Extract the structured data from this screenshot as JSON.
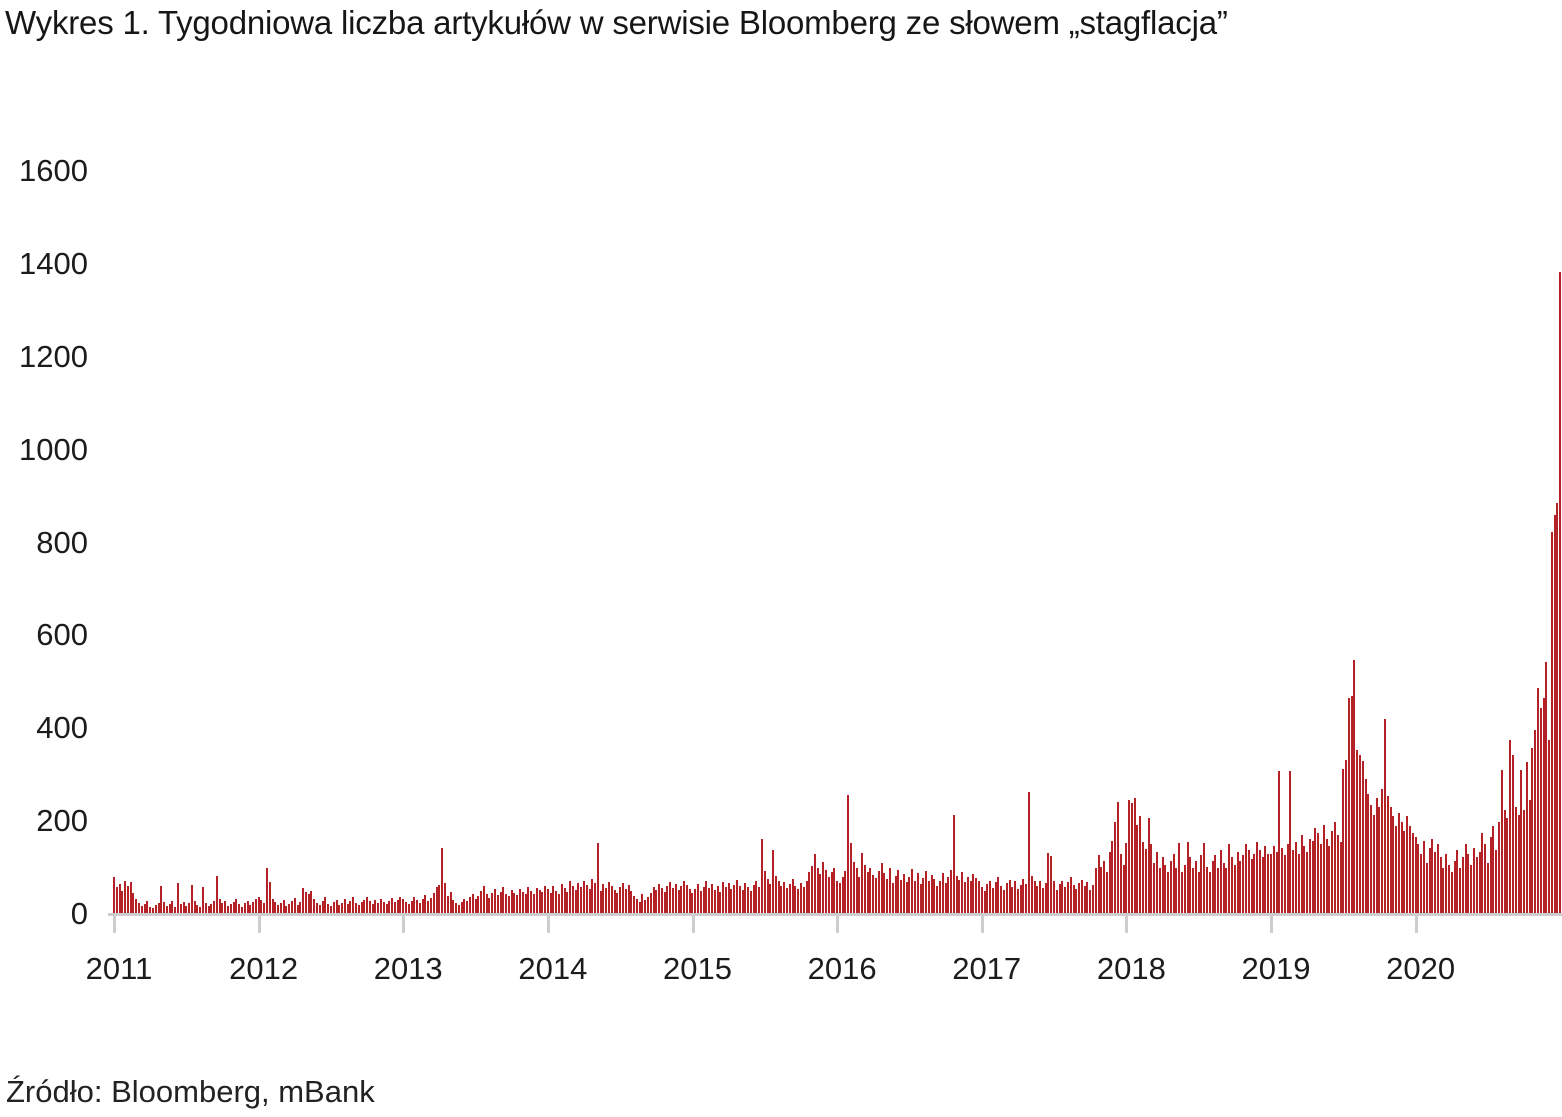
{
  "title": "Wykres 1. Tygodniowa liczba artykułów w serwisie Bloomberg ze słowem „stagflacja”",
  "source": "Źródło: Bloomberg, mBank",
  "colors": {
    "bar": "#b42126",
    "axis": "#cdcdcd",
    "text": "#1b1b1b"
  },
  "chart_data": {
    "type": "bar",
    "title": "Wykres 1. Tygodniowa liczba artykułów w serwisie Bloomberg ze słowem „stagflacja”",
    "xlabel": "",
    "ylabel": "",
    "frequency": "weekly",
    "grid": false,
    "legend": "none",
    "ylim": [
      0,
      1600
    ],
    "y_ticks": [
      0,
      200,
      400,
      600,
      800,
      1000,
      1200,
      1400,
      1600
    ],
    "x_tick_labels": [
      "2011",
      "2012",
      "2013",
      "2014",
      "2015",
      "2016",
      "2017",
      "2018",
      "2019",
      "2020"
    ],
    "year_tick_weeks": [
      0,
      52,
      104,
      156,
      208,
      260,
      312,
      364,
      416,
      468
    ],
    "series": [
      {
        "name": "liczba artykułów",
        "values": [
          78,
          55,
          62,
          48,
          70,
          58,
          66,
          44,
          30,
          22,
          16,
          20,
          26,
          14,
          10,
          18,
          22,
          58,
          24,
          16,
          20,
          26,
          14,
          64,
          20,
          24,
          16,
          22,
          60,
          26,
          18,
          14,
          56,
          22,
          16,
          20,
          26,
          80,
          30,
          22,
          26,
          16,
          20,
          24,
          30,
          20,
          14,
          22,
          26,
          18,
          24,
          30,
          35,
          28,
          22,
          98,
          67,
          30,
          24,
          18,
          22,
          28,
          16,
          20,
          26,
          32,
          18,
          24,
          54,
          46,
          40,
          48,
          30,
          22,
          18,
          26,
          34,
          20,
          16,
          24,
          28,
          18,
          22,
          30,
          20,
          26,
          34,
          22,
          18,
          24,
          28,
          34,
          26,
          20,
          28,
          22,
          30,
          24,
          20,
          26,
          32,
          24,
          28,
          34,
          30,
          24,
          20,
          26,
          34,
          28,
          22,
          30,
          38,
          26,
          32,
          44,
          56,
          60,
          140,
          64,
          36,
          46,
          28,
          22,
          18,
          24,
          30,
          26,
          34,
          42,
          30,
          36,
          48,
          58,
          40,
          32,
          44,
          52,
          38,
          46,
          56,
          42,
          36,
          50,
          44,
          38,
          52,
          46,
          40,
          56,
          48,
          42,
          54,
          50,
          46,
          58,
          52,
          44,
          58,
          48,
          40,
          62,
          54,
          46,
          68,
          58,
          50,
          64,
          56,
          70,
          60,
          52,
          74,
          64,
          150,
          48,
          62,
          54,
          66,
          58,
          50,
          44,
          56,
          64,
          52,
          60,
          48,
          36,
          30,
          24,
          40,
          28,
          34,
          44,
          56,
          50,
          62,
          54,
          46,
          58,
          66,
          54,
          62,
          50,
          58,
          70,
          60,
          52,
          44,
          52,
          62,
          48,
          56,
          68,
          54,
          62,
          50,
          58,
          46,
          66,
          56,
          64,
          52,
          60,
          72,
          58,
          50,
          64,
          55,
          48,
          60,
          68,
          56,
          160,
          90,
          74,
          62,
          135,
          80,
          70,
          58,
          66,
          54,
          62,
          74,
          58,
          52,
          64,
          56,
          70,
          88,
          102,
          128,
          96,
          84,
          110,
          92,
          78,
          88,
          96,
          70,
          64,
          78,
          90,
          255,
          150,
          110,
          96,
          78,
          130,
          104,
          88,
          96,
          82,
          76,
          90,
          108,
          86,
          74,
          96,
          64,
          80,
          92,
          72,
          84,
          66,
          78,
          94,
          70,
          86,
          62,
          76,
          90,
          68,
          82,
          74,
          58,
          70,
          86,
          64,
          78,
          92,
          210,
          80,
          72,
          88,
          66,
          78,
          70,
          84,
          76,
          68,
          56,
          48,
          62,
          70,
          54,
          66,
          78,
          58,
          50,
          64,
          72,
          56,
          68,
          52,
          60,
          74,
          62,
          260,
          80,
          68,
          58,
          70,
          54,
          64,
          130,
          122,
          68,
          50,
          62,
          70,
          56,
          66,
          78,
          60,
          52,
          64,
          72,
          58,
          66,
          50,
          60,
          96,
          124,
          100,
          112,
          88,
          132,
          156,
          196,
          240,
          128,
          104,
          150,
          244,
          236,
          248,
          190,
          208,
          152,
          138,
          205,
          148,
          108,
          132,
          96,
          120,
          104,
          88,
          112,
          128,
          96,
          150,
          88,
          104,
          152,
          120,
          96,
          112,
          88,
          124,
          150,
          100,
          88,
          112,
          124,
          96,
          136,
          108,
          96,
          148,
          120,
          104,
          132,
          112,
          124,
          148,
          136,
          116,
          128,
          152,
          136,
          120,
          144,
          128,
          128,
          144,
          132,
          305,
          140,
          124,
          148,
          305,
          136,
          152,
          128,
          168,
          144,
          132,
          160,
          156,
          184,
          172,
          148,
          190,
          160,
          144,
          176,
          196,
          168,
          152,
          310,
          330,
          462,
          468,
          545,
          352,
          340,
          328,
          288,
          256,
          232,
          212,
          248,
          228,
          268,
          418,
          252,
          228,
          208,
          188,
          216,
          196,
          176,
          208,
          188,
          172,
          164,
          148,
          128,
          156,
          108,
          140,
          160,
          132,
          148,
          120,
          96,
          128,
          104,
          88,
          112,
          136,
          96,
          120,
          148,
          128,
          104,
          140,
          120,
          132,
          172,
          148,
          108,
          164,
          188,
          136,
          196,
          308,
          222,
          204,
          373,
          340,
          228,
          212,
          308,
          222,
          325,
          243,
          355,
          394,
          484,
          441,
          463,
          540,
          372,
          820,
          857,
          883,
          1380
        ]
      }
    ]
  }
}
